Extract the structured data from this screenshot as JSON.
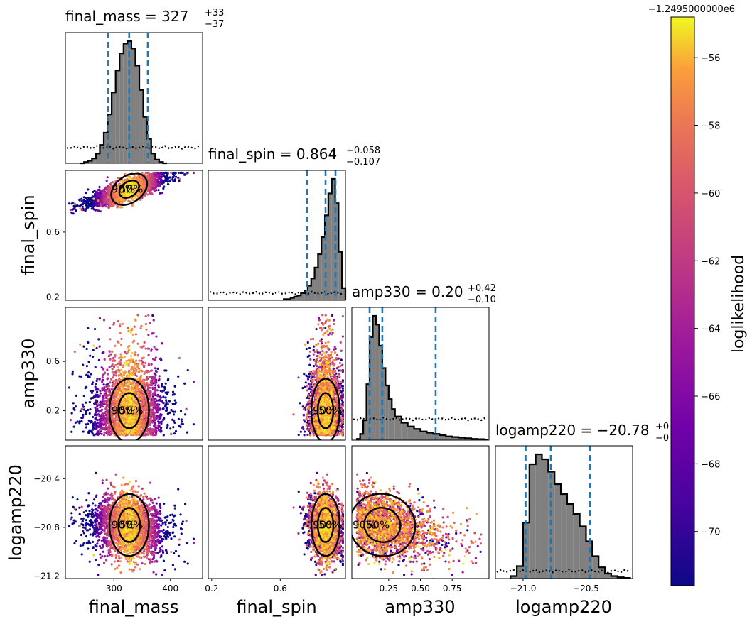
{
  "chart_data": {
    "type": "corner",
    "parameters": [
      "final_mass",
      "final_spin",
      "amp330",
      "logamp220"
    ],
    "axis_labels": [
      "final_mass",
      "final_spin",
      "amp330",
      "logamp220"
    ],
    "ranges": {
      "final_mass": [
        214,
        457
      ],
      "final_spin": [
        0.18,
        0.98
      ],
      "amp330": [
        -0.04,
        1.04
      ],
      "logamp220": [
        -21.22,
        -20.13
      ]
    },
    "ticks": {
      "final_mass": [
        {
          "v": 300,
          "label": "300"
        },
        {
          "v": 400,
          "label": "400"
        }
      ],
      "final_spin": [
        {
          "v": 0.2,
          "label": "0.2"
        },
        {
          "v": 0.6,
          "label": "0.6"
        }
      ],
      "amp330": [
        {
          "v": 0.25,
          "label": "0.25"
        },
        {
          "v": 0.5,
          "label": "0.50"
        },
        {
          "v": 0.75,
          "label": "0.75"
        }
      ],
      "amp330_y": [
        {
          "v": 0.2,
          "label": "0.2"
        },
        {
          "v": 0.6,
          "label": "0.6"
        }
      ],
      "logamp220": [
        {
          "v": -21.0,
          "label": "−21.0"
        },
        {
          "v": -20.5,
          "label": "−20.5"
        }
      ],
      "logamp220_y": [
        {
          "v": -21.2,
          "label": "−21.2"
        },
        {
          "v": -20.8,
          "label": "−20.8"
        },
        {
          "v": -20.4,
          "label": "−20.4"
        }
      ],
      "final_spin_y": [
        {
          "v": 0.2,
          "label": "0.2"
        },
        {
          "v": 0.6,
          "label": "0.6"
        }
      ]
    },
    "diagonal_titles": [
      {
        "param": "final_mass",
        "text": "final_mass = 327",
        "sup": "+33",
        "sub": "−37"
      },
      {
        "param": "final_spin",
        "text": "final_spin = 0.864",
        "sup": "+0.058",
        "sub": "−0.107"
      },
      {
        "param": "amp330",
        "text": "amp330 = 0.20",
        "sup": "+0.42",
        "sub": "−0.10"
      },
      {
        "param": "logamp220",
        "text": "logamp220 = −20.78",
        "sup": "+0",
        "sub": "−0"
      }
    ],
    "quantiles": {
      "final_mass": [
        290,
        327,
        360
      ],
      "final_spin": [
        0.757,
        0.864,
        0.922
      ],
      "amp330": [
        0.1,
        0.2,
        0.62
      ],
      "logamp220": [
        -20.98,
        -20.78,
        -20.47
      ]
    },
    "histograms": {
      "final_mass": {
        "bins": [
          240,
          247,
          254,
          261,
          268,
          275,
          282,
          289,
          296,
          303,
          310,
          317,
          324,
          331,
          338,
          345,
          352,
          359,
          366,
          373,
          380,
          387
        ],
        "counts": [
          0,
          0.01,
          0.02,
          0.04,
          0.08,
          0.15,
          0.25,
          0.4,
          0.58,
          0.76,
          0.9,
          0.98,
          1.0,
          0.94,
          0.8,
          0.6,
          0.38,
          0.2,
          0.08,
          0.03,
          0.01,
          0
        ]
      },
      "final_spin": {
        "bins": [
          0.62,
          0.64,
          0.66,
          0.68,
          0.7,
          0.72,
          0.74,
          0.76,
          0.78,
          0.8,
          0.82,
          0.84,
          0.86,
          0.88,
          0.9,
          0.92,
          0.94,
          0.96
        ],
        "counts": [
          0.01,
          0.01,
          0.02,
          0.03,
          0.04,
          0.06,
          0.08,
          0.12,
          0.18,
          0.27,
          0.38,
          0.52,
          0.7,
          0.88,
          1.0,
          0.8,
          0.4,
          0.1
        ]
      },
      "amp330": {
        "bins": [
          0.0,
          0.025,
          0.05,
          0.075,
          0.1,
          0.125,
          0.15,
          0.175,
          0.2,
          0.225,
          0.25,
          0.275,
          0.3,
          0.35,
          0.4,
          0.45,
          0.5,
          0.55,
          0.6,
          0.65,
          0.7,
          0.75,
          0.8,
          0.85,
          0.9,
          0.95,
          1.0
        ],
        "counts": [
          0.01,
          0.05,
          0.16,
          0.45,
          0.83,
          1.0,
          0.93,
          0.76,
          0.58,
          0.44,
          0.33,
          0.25,
          0.19,
          0.14,
          0.11,
          0.09,
          0.07,
          0.06,
          0.05,
          0.04,
          0.03,
          0.025,
          0.02,
          0.015,
          0.01,
          0.008,
          0.005
        ]
      },
      "logamp220": {
        "bins": [
          -21.1,
          -21.05,
          -21.0,
          -20.95,
          -20.9,
          -20.85,
          -20.8,
          -20.75,
          -20.7,
          -20.65,
          -20.6,
          -20.55,
          -20.5,
          -20.45,
          -20.4,
          -20.35,
          -20.3,
          -20.25,
          -20.2
        ],
        "counts": [
          0.02,
          0.1,
          0.45,
          0.92,
          1.0,
          0.96,
          0.86,
          0.76,
          0.68,
          0.6,
          0.52,
          0.42,
          0.3,
          0.18,
          0.09,
          0.04,
          0.02,
          0.01,
          0.005
        ]
      }
    },
    "prior_level": {
      "final_mass": 0.13,
      "final_spin": 0.06,
      "amp330": 0.17,
      "logamp220": 0.06
    },
    "contour_labels": [
      "50%",
      "90%"
    ],
    "colorbar": {
      "label": "loglikelihood",
      "offset_text": "−1.2495000000e6",
      "range": [
        -71.6,
        -54.8
      ],
      "colormap": "plasma",
      "ticks": [
        {
          "v": -56,
          "label": "−56"
        },
        {
          "v": -58,
          "label": "−58"
        },
        {
          "v": -60,
          "label": "−60"
        },
        {
          "v": -62,
          "label": "−62"
        },
        {
          "v": -64,
          "label": "−64"
        },
        {
          "v": -66,
          "label": "−66"
        },
        {
          "v": -68,
          "label": "−68"
        },
        {
          "v": -70,
          "label": "−70"
        }
      ]
    },
    "colors": {
      "histogram_fill": "#808080",
      "quantile_line": "#1f77b4",
      "contour": "#000000"
    }
  }
}
